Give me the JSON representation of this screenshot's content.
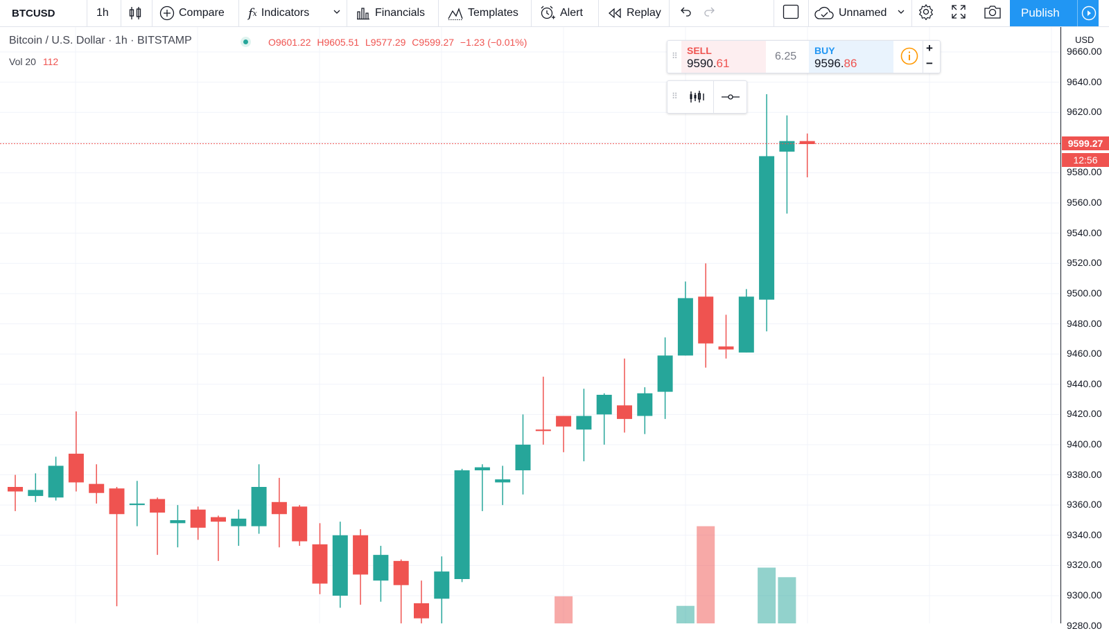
{
  "toolbar": {
    "symbol": "BTCUSD",
    "interval": "1h",
    "compare_label": "Compare",
    "indicators_label": "Indicators",
    "financials_label": "Financials",
    "templates_label": "Templates",
    "alert_label": "Alert",
    "replay_label": "Replay",
    "layout_name": "Unnamed",
    "publish_label": "Publish"
  },
  "legend": {
    "title": "Bitcoin / U.S. Dollar · 1h · BITSTAMP",
    "open": "O9601.22",
    "high": "H9605.51",
    "low": "L9577.29",
    "close": "C9599.27",
    "change": "−1.23 (−0.01%)",
    "vol_label": "Vol 20",
    "vol_value": "112"
  },
  "trade_panel": {
    "sell_label": "SELL",
    "sell_price_main": "9590.",
    "sell_price_tail": "61",
    "spread": "6.25",
    "buy_label": "BUY",
    "buy_price_main": "9596.",
    "buy_price_tail": "86",
    "plus": "+",
    "minus": "−"
  },
  "price_axis": {
    "currency": "USD",
    "current_price": "9599.27",
    "countdown": "12:56"
  },
  "colors": {
    "up": "#26a69a",
    "down": "#ef5350",
    "accent": "#2196f3",
    "grid": "#f0f3fa"
  },
  "chart_data": {
    "type": "candlestick",
    "symbol": "BTCUSD",
    "exchange": "BITSTAMP",
    "interval": "1h",
    "ylim": [
      9280,
      9670
    ],
    "y_ticks": [
      "9660.00",
      "9640.00",
      "9620.00",
      "9600.00",
      "9580.00",
      "9560.00",
      "9540.00",
      "9520.00",
      "9500.00",
      "9480.00",
      "9460.00",
      "9440.00",
      "9420.00",
      "9400.00",
      "9380.00",
      "9360.00",
      "9340.00",
      "9320.00",
      "9300.00",
      "9280.00"
    ],
    "candles": [
      {
        "o": 9372,
        "h": 9380,
        "l": 9356,
        "c": 9369
      },
      {
        "o": 9366,
        "h": 9381,
        "l": 9362,
        "c": 9370
      },
      {
        "o": 9365,
        "h": 9392,
        "l": 9363,
        "c": 9386
      },
      {
        "o": 9394,
        "h": 9422,
        "l": 9369,
        "c": 9375
      },
      {
        "o": 9374,
        "h": 9387,
        "l": 9361,
        "c": 9368
      },
      {
        "o": 9371,
        "h": 9372,
        "l": 9293,
        "c": 9354
      },
      {
        "o": 9360,
        "h": 9376,
        "l": 9346,
        "c": 9361
      },
      {
        "o": 9364,
        "h": 9365,
        "l": 9327,
        "c": 9355
      },
      {
        "o": 9348,
        "h": 9360,
        "l": 9332,
        "c": 9350
      },
      {
        "o": 9357,
        "h": 9359,
        "l": 9337,
        "c": 9345
      },
      {
        "o": 9352,
        "h": 9353,
        "l": 9323,
        "c": 9349
      },
      {
        "o": 9346,
        "h": 9357,
        "l": 9333,
        "c": 9351
      },
      {
        "o": 9346,
        "h": 9387,
        "l": 9341,
        "c": 9372
      },
      {
        "o": 9362,
        "h": 9378,
        "l": 9332,
        "c": 9354
      },
      {
        "o": 9359,
        "h": 9360,
        "l": 9333,
        "c": 9336
      },
      {
        "o": 9334,
        "h": 9348,
        "l": 9301,
        "c": 9308
      },
      {
        "o": 9300,
        "h": 9349,
        "l": 9292,
        "c": 9340
      },
      {
        "o": 9340,
        "h": 9344,
        "l": 9294,
        "c": 9314
      },
      {
        "o": 9310,
        "h": 9333,
        "l": 9296,
        "c": 9327
      },
      {
        "o": 9323,
        "h": 9324,
        "l": 9280,
        "c": 9307
      },
      {
        "o": 9295,
        "h": 9310,
        "l": 9278,
        "c": 9285
      },
      {
        "o": 9298,
        "h": 9326,
        "l": 9270,
        "c": 9316
      },
      {
        "o": 9311,
        "h": 9384,
        "l": 9309,
        "c": 9383
      },
      {
        "o": 9383,
        "h": 9387,
        "l": 9356,
        "c": 9385
      },
      {
        "o": 9375,
        "h": 9386,
        "l": 9360,
        "c": 9377
      },
      {
        "o": 9383,
        "h": 9420,
        "l": 9367,
        "c": 9400
      },
      {
        "o": 9410,
        "h": 9445,
        "l": 9400,
        "c": 9409
      },
      {
        "o": 9419,
        "h": 9418,
        "l": 9395,
        "c": 9412
      },
      {
        "o": 9410,
        "h": 9437,
        "l": 9389,
        "c": 9419
      },
      {
        "o": 9420,
        "h": 9434,
        "l": 9400,
        "c": 9433
      },
      {
        "o": 9426,
        "h": 9457,
        "l": 9408,
        "c": 9417
      },
      {
        "o": 9419,
        "h": 9438,
        "l": 9407,
        "c": 9434
      },
      {
        "o": 9435,
        "h": 9471,
        "l": 9417,
        "c": 9459
      },
      {
        "o": 9459,
        "h": 9508,
        "l": 9459,
        "c": 9497
      },
      {
        "o": 9498,
        "h": 9520,
        "l": 9451,
        "c": 9467
      },
      {
        "o": 9465,
        "h": 9486,
        "l": 9457,
        "c": 9463
      },
      {
        "o": 9461,
        "h": 9503,
        "l": 9461,
        "c": 9498
      },
      {
        "o": 9496,
        "h": 9632,
        "l": 9475,
        "c": 9591
      },
      {
        "o": 9594,
        "h": 9618,
        "l": 9553,
        "c": 9601
      },
      {
        "o": 9601,
        "h": 9606,
        "l": 9577,
        "c": 9599
      }
    ],
    "volume": [
      {
        "i": 27,
        "v": 17,
        "dir": "down"
      },
      {
        "i": 33,
        "v": 11,
        "dir": "up"
      },
      {
        "i": 34,
        "v": 61,
        "dir": "down"
      },
      {
        "i": 37,
        "v": 35,
        "dir": "up"
      },
      {
        "i": 38,
        "v": 29,
        "dir": "up"
      }
    ],
    "last_price": 9599.27
  }
}
